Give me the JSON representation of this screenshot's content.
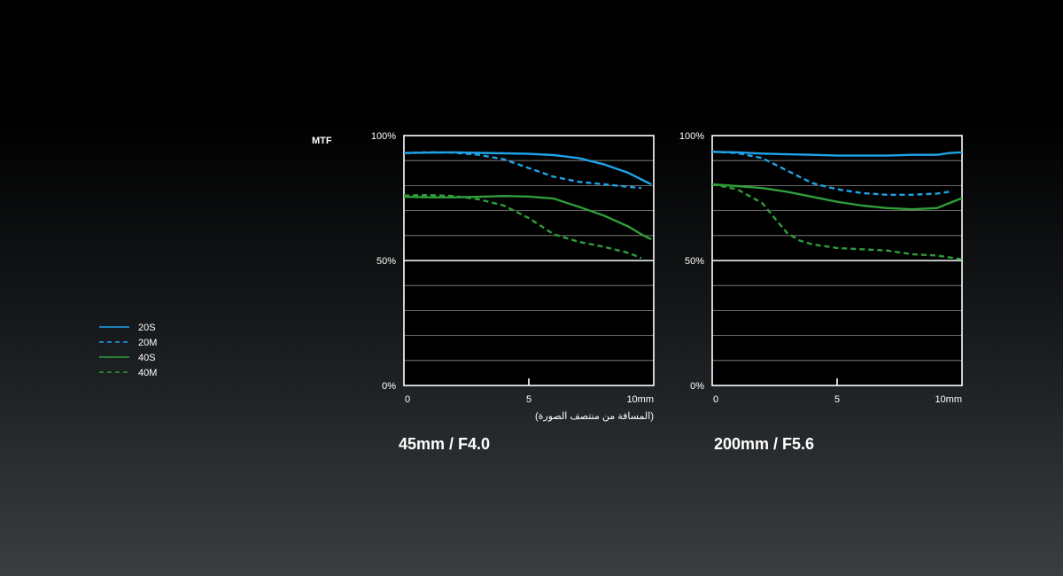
{
  "mtf_label": "MTF",
  "x_caption": "(المسافة من منتصف الصورة)",
  "legend": [
    {
      "label": "20S",
      "color": "#1fa3e8",
      "dashed": false
    },
    {
      "label": "20M",
      "color": "#1fa3e8",
      "dashed": true
    },
    {
      "label": "40S",
      "color": "#2f9e3a",
      "dashed": false
    },
    {
      "label": "40M",
      "color": "#2f9e3a",
      "dashed": true
    }
  ],
  "chart_data": [
    {
      "type": "line",
      "title": "45mm / F4.0",
      "ylabel": "MTF",
      "xlabel": "(المسافة من منتصف الصورة)",
      "xlim": [
        0,
        10
      ],
      "ylim": [
        0,
        100
      ],
      "x_ticks": [
        "0",
        "5",
        "10mm"
      ],
      "y_ticks": [
        "0%",
        "50%",
        "100%"
      ],
      "series": [
        {
          "name": "20S",
          "color": "#1fa3e8",
          "dashed": false,
          "x": [
            0,
            1,
            2,
            3,
            4,
            5,
            6,
            7,
            8,
            9,
            9.5,
            9.9
          ],
          "y": [
            93,
            93.2,
            93.3,
            93.1,
            92.9,
            92.7,
            92.2,
            91,
            88.5,
            85,
            82.5,
            80.5
          ]
        },
        {
          "name": "20M",
          "color": "#1fa3e8",
          "dashed": true,
          "x": [
            0,
            1,
            2,
            3,
            4,
            5,
            6,
            7,
            8,
            9,
            9.5
          ],
          "y": [
            93,
            93.3,
            93.2,
            92.3,
            90.5,
            87,
            83.5,
            81.5,
            80.5,
            79.5,
            79
          ]
        },
        {
          "name": "40S",
          "color": "#2f9e3a",
          "dashed": false,
          "x": [
            0,
            1,
            2,
            3,
            4,
            5,
            6,
            7,
            8,
            9,
            9.5,
            9.9
          ],
          "y": [
            75.5,
            75.3,
            75.3,
            75.5,
            75.8,
            75.6,
            74.8,
            71.5,
            68,
            63.5,
            60.5,
            58.5
          ]
        },
        {
          "name": "40M",
          "color": "#2f9e3a",
          "dashed": true,
          "x": [
            0,
            1,
            2,
            3,
            4,
            5,
            6,
            7,
            8,
            9,
            9.5
          ],
          "y": [
            76,
            76.2,
            75.8,
            74.5,
            72,
            67,
            60.5,
            57.5,
            55.5,
            53,
            51
          ]
        }
      ]
    },
    {
      "type": "line",
      "title": "200mm / F5.6",
      "ylabel": "MTF",
      "xlim": [
        0,
        10
      ],
      "ylim": [
        0,
        100
      ],
      "x_ticks": [
        "0",
        "5",
        "10mm"
      ],
      "y_ticks": [
        "0%",
        "50%",
        "100%"
      ],
      "series": [
        {
          "name": "20S",
          "color": "#1fa3e8",
          "dashed": false,
          "x": [
            0,
            1,
            2,
            3,
            4,
            5,
            6,
            7,
            8,
            9,
            9.5,
            10
          ],
          "y": [
            93.5,
            93.3,
            92.8,
            92.5,
            92.3,
            92,
            92,
            92,
            92.3,
            92.3,
            93,
            93.3
          ]
        },
        {
          "name": "20M",
          "color": "#1fa3e8",
          "dashed": true,
          "x": [
            0,
            1,
            2,
            3,
            4,
            5,
            6,
            7,
            8,
            9,
            9.5
          ],
          "y": [
            93.5,
            93,
            91,
            86,
            81,
            78.5,
            77,
            76.3,
            76.3,
            76.8,
            77.5
          ]
        },
        {
          "name": "40S",
          "color": "#2f9e3a",
          "dashed": false,
          "x": [
            0,
            1,
            2,
            3,
            4,
            5,
            6,
            7,
            8,
            9,
            10
          ],
          "y": [
            80.5,
            79.8,
            79,
            77.5,
            75.5,
            73.5,
            72,
            71,
            70.5,
            71,
            75
          ]
        },
        {
          "name": "40M",
          "color": "#2f9e3a",
          "dashed": true,
          "x": [
            0,
            1,
            2,
            2.5,
            3,
            3.5,
            4,
            5,
            6,
            7,
            8,
            9,
            10
          ],
          "y": [
            80.5,
            78.5,
            73,
            67,
            61,
            58,
            56.5,
            55,
            54.5,
            54,
            52.5,
            52,
            50.5
          ]
        }
      ]
    }
  ]
}
